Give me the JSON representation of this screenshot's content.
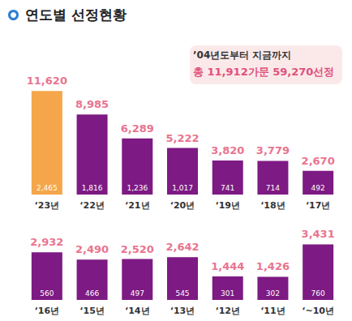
{
  "chart_data": [
    {
      "type": "bar",
      "title": "연도별 선정현황",
      "annotations": [
        "’04년도부터 지금까지",
        "총 11,912가문 59,270선정"
      ],
      "categories": [
        "‘23년",
        "‘22년",
        "‘21년",
        "‘20년",
        "‘19년",
        "‘18년",
        "‘17년"
      ],
      "values": [
        11620,
        8985,
        6289,
        5222,
        3820,
        3779,
        2670
      ],
      "value_labels": [
        "11,620",
        "8,985",
        "6,289",
        "5,222",
        "3,820",
        "3,779",
        "2,670"
      ],
      "inner_values": [
        2465,
        1816,
        1236,
        1017,
        741,
        714,
        492
      ],
      "inner_labels": [
        "2,465",
        "1,816",
        "1,236",
        "1,017",
        "741",
        "714",
        "492"
      ],
      "colors": [
        "#f5a54a",
        "#7d1a83",
        "#7d1a83",
        "#7d1a83",
        "#7d1a83",
        "#7d1a83",
        "#7d1a83"
      ],
      "ylim": [
        0,
        12000
      ],
      "data_labels": true,
      "tick_labels": "x",
      "grid": false
    },
    {
      "type": "bar",
      "categories": [
        "‘16년",
        "‘15년",
        "‘14년",
        "‘13년",
        "‘12년",
        "‘11년",
        "‘~10년"
      ],
      "values": [
        2932,
        2490,
        2520,
        2642,
        1444,
        1426,
        3431
      ],
      "value_labels": [
        "2,932",
        "2,490",
        "2,520",
        "2,642",
        "1,444",
        "1,426",
        "3,431"
      ],
      "inner_values": [
        560,
        466,
        497,
        545,
        301,
        302,
        760
      ],
      "inner_labels": [
        "560",
        "466",
        "497",
        "545",
        "301",
        "302",
        "760"
      ],
      "color": "#7d1a83",
      "ylim": [
        0,
        4000
      ],
      "data_labels": true,
      "tick_labels": "x",
      "grid": false
    }
  ]
}
